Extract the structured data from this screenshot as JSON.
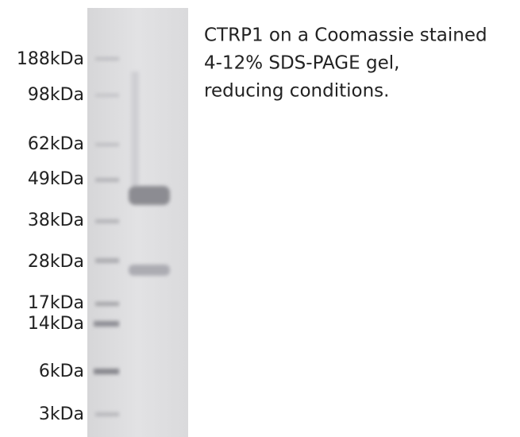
{
  "markers": [
    "188kDa",
    "98kDa",
    "62kDa",
    "49kDa",
    "38kDa",
    "28kDa",
    "17kDa",
    "14kDa",
    "6kDa",
    "3kDa"
  ],
  "caption": [
    "CTRP1 on a Coomassie stained",
    "4-12% SDS-PAGE gel,",
    "reducing conditions."
  ]
}
